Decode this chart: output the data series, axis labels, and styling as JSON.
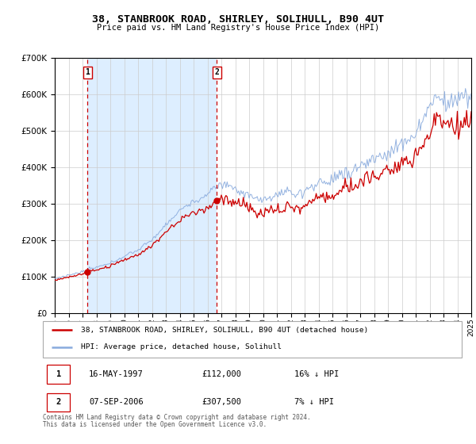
{
  "title": "38, STANBROOK ROAD, SHIRLEY, SOLIHULL, B90 4UT",
  "subtitle": "Price paid vs. HM Land Registry's House Price Index (HPI)",
  "sale1_label": "16-MAY-1997",
  "sale1_price": 112000,
  "sale1_price_str": "£112,000",
  "sale1_hpi_pct": "16% ↓ HPI",
  "sale1_year": 1997.37,
  "sale2_label": "07-SEP-2006",
  "sale2_price": 307500,
  "sale2_price_str": "£307,500",
  "sale2_hpi_pct": "7% ↓ HPI",
  "sale2_year": 2006.68,
  "legend_line1": "38, STANBROOK ROAD, SHIRLEY, SOLIHULL, B90 4UT (detached house)",
  "legend_line2": "HPI: Average price, detached house, Solihull",
  "footer1": "Contains HM Land Registry data © Crown copyright and database right 2024.",
  "footer2": "This data is licensed under the Open Government Licence v3.0.",
  "red_color": "#cc0000",
  "blue_color": "#88aadd",
  "bg_shade": "#ddeeff",
  "ylim_max": 700000,
  "yticks": [
    0,
    100000,
    200000,
    300000,
    400000,
    500000,
    600000,
    700000
  ],
  "start_year": 1995,
  "end_year": 2025
}
